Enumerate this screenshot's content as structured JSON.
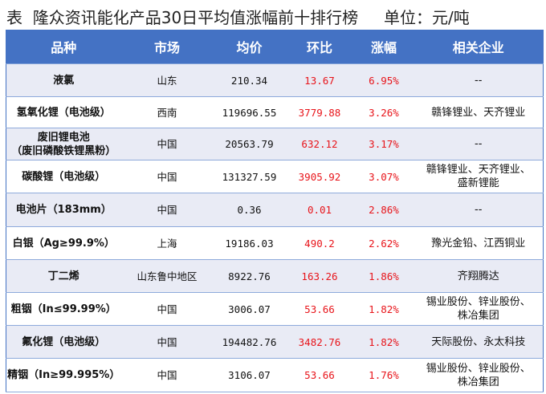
{
  "title": "表  隆众资讯能化产品30日平均值涨幅前十排行榜     单位：元/吨",
  "accent_color": "#4472c4",
  "positive_color": "#e8141a",
  "columns": [
    "品种",
    "市场",
    "均价",
    "环比",
    "涨幅",
    "相关企业"
  ],
  "rows": [
    {
      "name": "液氯",
      "market": "山东",
      "avg": "210.34",
      "mom": "13.67",
      "pct": "6.95%",
      "companies": "--"
    },
    {
      "name": "氢氧化锂（电池级）",
      "market": "西南",
      "avg": "119696.55",
      "mom": "3779.88",
      "pct": "3.26%",
      "companies": "赣锋锂业、天齐锂业"
    },
    {
      "name": "废旧锂电池\n（废旧磷酸铁锂黑粉）",
      "market": "中国",
      "avg": "20563.79",
      "mom": "632.12",
      "pct": "3.17%",
      "companies": "--"
    },
    {
      "name": "碳酸锂（电池级）",
      "market": "中国",
      "avg": "131327.59",
      "mom": "3905.92",
      "pct": "3.07%",
      "companies": "赣锋锂业、天齐锂业、\n盛新锂能"
    },
    {
      "name": "电池片（183mm）",
      "market": "中国",
      "avg": "0.36",
      "mom": "0.01",
      "pct": "2.86%",
      "companies": "--"
    },
    {
      "name": "白银（Ag≥99.9%）",
      "market": "上海",
      "avg": "19186.03",
      "mom": "490.2",
      "pct": "2.62%",
      "companies": "豫光金铅、江西铜业"
    },
    {
      "name": "丁二烯",
      "market": "山东鲁中地区",
      "avg": "8922.76",
      "mom": "163.26",
      "pct": "1.86%",
      "companies": "齐翔腾达"
    },
    {
      "name": "粗铟（In≤99.99%）",
      "market": "中国",
      "avg": "3006.07",
      "mom": "53.66",
      "pct": "1.82%",
      "companies": "锡业股份、锌业股份、\n株冶集团"
    },
    {
      "name": "氟化锂（电池级）",
      "market": "中国",
      "avg": "194482.76",
      "mom": "3482.76",
      "pct": "1.82%",
      "companies": "天际股份、永太科技"
    },
    {
      "name": "精铟（In≥99.995%）",
      "market": "中国",
      "avg": "3106.07",
      "mom": "53.66",
      "pct": "1.76%",
      "companies": "锡业股份、锌业股份、\n株冶集团"
    }
  ]
}
